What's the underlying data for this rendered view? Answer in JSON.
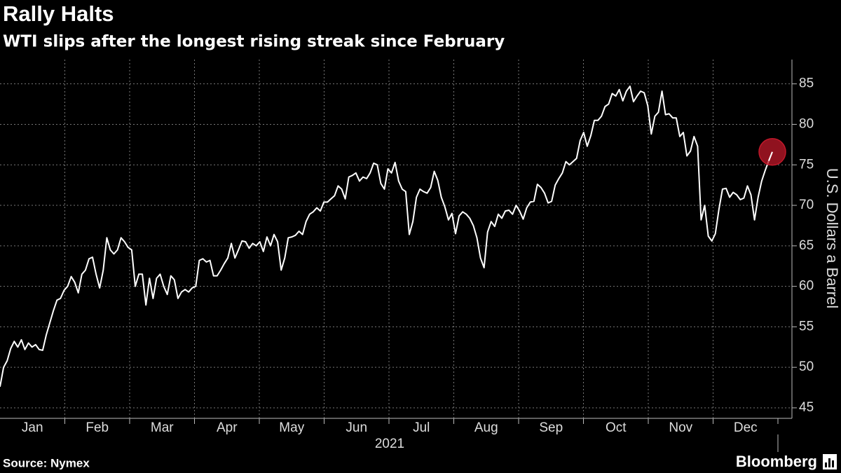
{
  "chart_data": {
    "type": "line",
    "title": "Rally Halts",
    "subtitle": "WTI slips after the longest rising streak since February",
    "y_axis_label": "U.S. Dollars a Barrel",
    "xlabel": "2021",
    "months": [
      "Jan",
      "Feb",
      "Mar",
      "Apr",
      "May",
      "Jun",
      "Jul",
      "Aug",
      "Sep",
      "Oct",
      "Nov",
      "Dec"
    ],
    "source": "Source: Nymex",
    "brand": "Bloomberg",
    "color": "#ffffff",
    "highlight_color": "#c0182a",
    "ylim": [
      43.7,
      88
    ],
    "yticks": [
      45,
      50,
      55,
      60,
      65,
      70,
      75,
      80,
      85
    ],
    "grid": true,
    "values": [
      47.6,
      50,
      50.8,
      52.3,
      53.2,
      52.5,
      53.4,
      52.2,
      53,
      52.5,
      52.8,
      52.2,
      52.1,
      54,
      55.5,
      57,
      58.3,
      58.5,
      59.5,
      60,
      61.2,
      60.5,
      59.2,
      61.5,
      62,
      63.4,
      63.6,
      61.5,
      59.8,
      62,
      66,
      64.5,
      64,
      64.5,
      66,
      65.5,
      64.8,
      64.5,
      60,
      61.5,
      61.5,
      57.7,
      61,
      58.5,
      61,
      61.5,
      60,
      59,
      61.3,
      60.8,
      58.5,
      59.3,
      59.6,
      59.3,
      59.8,
      60,
      63.2,
      63.4,
      63,
      63.2,
      61.3,
      61.3,
      62,
      62.8,
      63.5,
      65.3,
      63.5,
      64.5,
      65.6,
      65.5,
      64.7,
      65.3,
      65,
      65.5,
      64.3,
      66.1,
      65,
      66.4,
      65.5,
      62,
      63.5,
      66,
      66.1,
      66.3,
      66.8,
      66.4,
      68,
      68.9,
      69.2,
      69.7,
      69.3,
      70.4,
      70.4,
      70.8,
      71.2,
      72.4,
      72,
      70.8,
      73.5,
      73.7,
      74,
      73,
      73.5,
      73.3,
      74,
      75.2,
      75,
      72.7,
      72,
      74.5,
      74,
      75.3,
      73,
      72,
      71.7,
      66.4,
      68,
      71,
      72,
      71.7,
      71.5,
      72.2,
      74.2,
      73.1,
      71,
      69.8,
      68.2,
      69,
      66.5,
      68.7,
      69.2,
      68.9,
      68.4,
      67.5,
      66,
      63.5,
      62.3,
      66.7,
      68,
      67.4,
      68.9,
      68.4,
      69.3,
      69.4,
      68.9,
      70,
      69.3,
      68.3,
      69.7,
      70.4,
      70.5,
      72.6,
      72.2,
      71.5,
      70.3,
      70.5,
      72.5,
      73.3,
      74,
      75.4,
      75,
      75.4,
      75.8,
      78,
      79,
      77.3,
      78.6,
      80.5,
      80.5,
      81,
      82.2,
      82.5,
      83.8,
      83.5,
      84.3,
      82.9,
      84.1,
      84.7,
      82.8,
      83.5,
      84.1,
      83.9,
      82.3,
      78.8,
      81,
      81.5,
      84.1,
      81.2,
      81.3,
      80.8,
      80.8,
      78.5,
      79,
      76.1,
      76.7,
      78.5,
      77.3,
      68.2,
      70,
      66.2,
      65.6,
      66.5,
      69.5,
      72,
      72.1,
      71,
      71.6,
      71.3,
      70.7,
      70.9,
      72.4,
      71.3,
      68.2,
      71,
      73,
      74.3,
      75.5,
      76.6
    ]
  }
}
